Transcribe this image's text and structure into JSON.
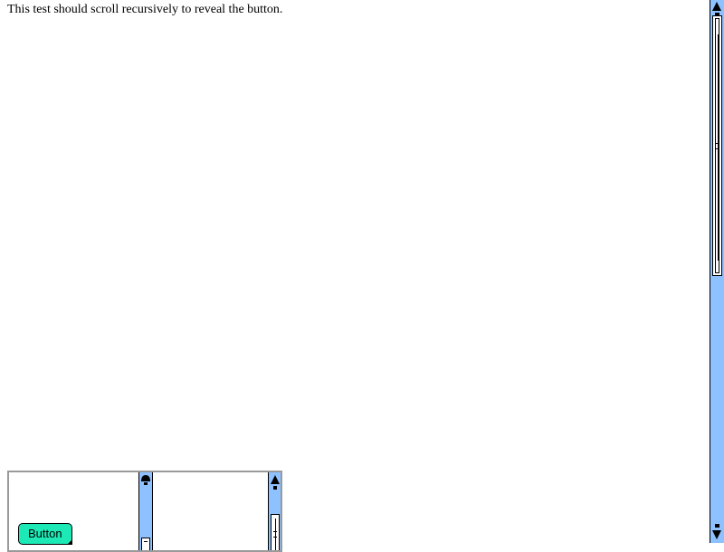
{
  "page": {
    "intro_text": "This test should scroll recursively to reveal the button."
  },
  "target_button": {
    "label": "Button"
  },
  "colors": {
    "scrollbar_track": "#8ec1ff",
    "button_background": "#1de9b6",
    "container_border": "#9a9a9a"
  },
  "icons": {
    "scroll_up": "triangle-up",
    "scroll_down": "triangle-down"
  }
}
